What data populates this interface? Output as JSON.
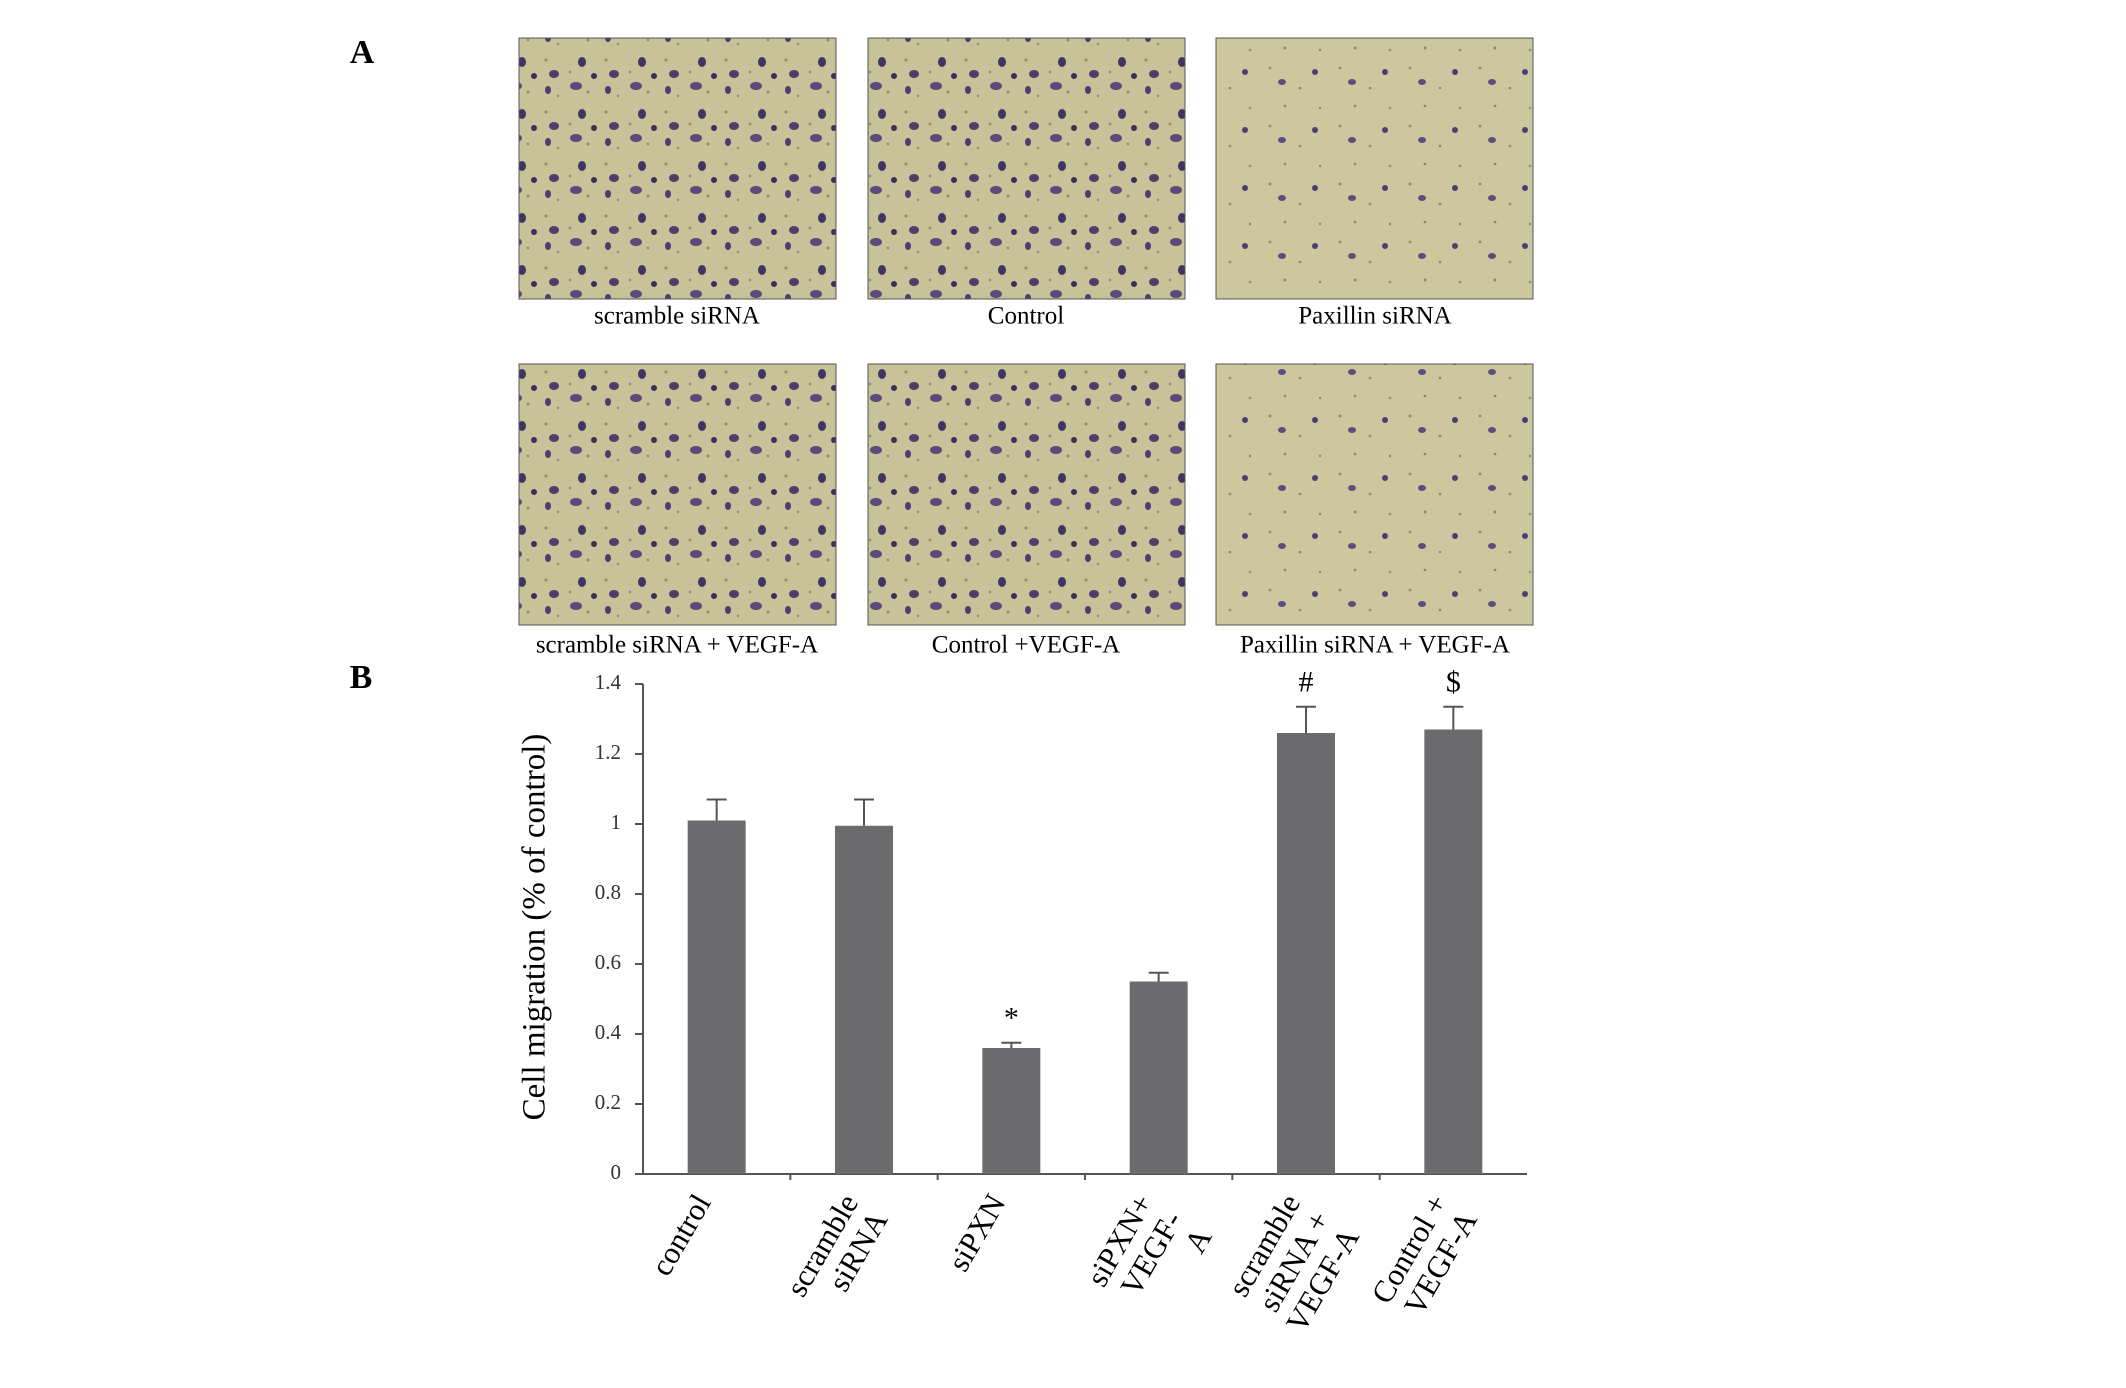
{
  "panels": {
    "a": {
      "label": "A",
      "captions": [
        "scramble siRNA",
        "Control",
        "Paxillin siRNA",
        "scramble siRNA + VEGF-A",
        "Control +VEGF-A",
        "Paxillin siRNA + VEGF-A"
      ]
    },
    "b": {
      "label": "B"
    }
  },
  "chart_data": {
    "type": "bar",
    "y_label": "Cell migration (% of control)",
    "categories": [
      [
        "control"
      ],
      [
        "scramble",
        "siRNA"
      ],
      [
        "siPXN"
      ],
      [
        "siPXN+",
        "VEGF-",
        "A"
      ],
      [
        "scramble",
        "siRNA +",
        "VEGF-A"
      ],
      [
        "Control +",
        "VEGF-A"
      ]
    ],
    "values": [
      1.01,
      0.995,
      0.36,
      0.55,
      1.26,
      1.27
    ],
    "errors": [
      0.06,
      0.075,
      0.015,
      0.025,
      0.075,
      0.065
    ],
    "annotations": [
      null,
      null,
      "*",
      null,
      "#",
      "$"
    ],
    "color": "#6b6b6e",
    "ylim": [
      0,
      1.4
    ],
    "yticks": [
      0,
      0.2,
      0.4,
      0.6,
      0.8,
      1,
      1.2,
      1.4
    ]
  }
}
